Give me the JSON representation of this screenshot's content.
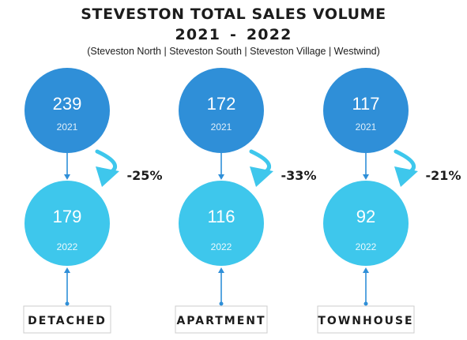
{
  "header": {
    "title_line1": "STEVESTON TOTAL SALES VOLUME",
    "title_line2": "2021 -  2022",
    "subtitle": "(Steveston North | Steveston South | Steveston Village | Westwind)"
  },
  "colors": {
    "circle_2021": "#2f8fd8",
    "circle_2022": "#3ec7ec",
    "connector": "#2f8fd8",
    "arrow_2021": "#2f8fd8",
    "curve_arrow": "#3ec7ec",
    "text": "#1c1c1c",
    "label_border": "#cccccc"
  },
  "chart_data": {
    "type": "bubble-comparison",
    "title": "STEVESTON TOTAL SALES VOLUME 2021 -  2022",
    "subtitle": "(Steveston North | Steveston South | Steveston Village | Westwind)",
    "periods": [
      "2021",
      "2022"
    ],
    "categories": [
      "DETACHED",
      "APARTMENT",
      "TOWNHOUSE"
    ],
    "items": [
      {
        "category": "DETACHED",
        "value_2021": 239,
        "value_2022": 179,
        "change": "-25%"
      },
      {
        "category": "APARTMENT",
        "value_2021": 172,
        "value_2022": 116,
        "change": "-33%"
      },
      {
        "category": "TOWNHOUSE",
        "value_2021": 117,
        "value_2022": 92,
        "change": "-21%"
      }
    ]
  }
}
